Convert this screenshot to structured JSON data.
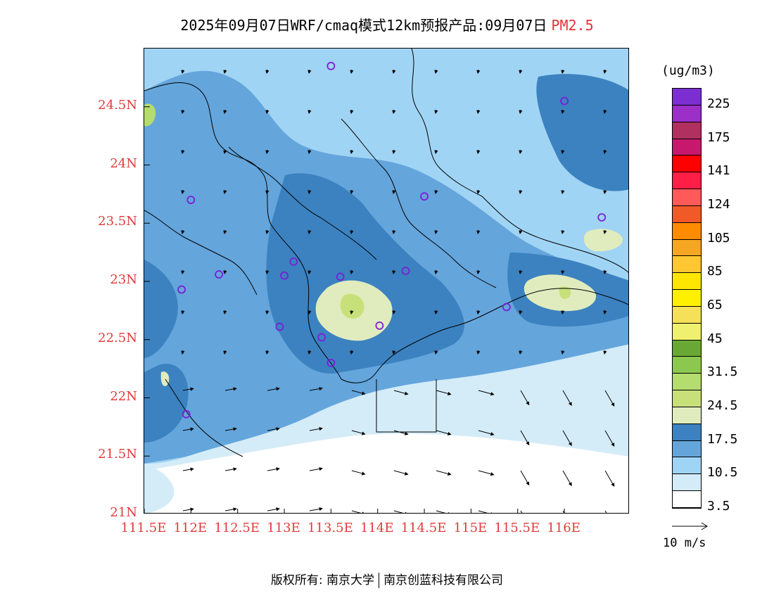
{
  "title": {
    "text": "2025年09月07日WRF/cmaq模式12km预报产品:09月07日",
    "variable": "PM2.5",
    "variable_color": "#e8303a"
  },
  "map": {
    "lat_labels": [
      "24.5N",
      "24N",
      "23.5N",
      "23N",
      "22.5N",
      "22N",
      "21.5N",
      "21N"
    ],
    "lat_values": [
      24.5,
      24,
      23.5,
      23,
      22.5,
      22,
      21.5,
      21
    ],
    "lon_labels": [
      "111.5E",
      "112E",
      "112.5E",
      "113E",
      "113.5E",
      "114E",
      "114.5E",
      "115E",
      "115.5E",
      "116E"
    ],
    "lon_values": [
      111.5,
      112,
      112.5,
      113,
      113.5,
      114,
      114.5,
      115,
      115.5,
      116
    ],
    "lat_range": [
      21,
      25
    ],
    "lon_range": [
      111.5,
      116.7
    ],
    "label_color": "#e03a3a",
    "stations": [
      {
        "lon": 113.5,
        "lat": 24.85
      },
      {
        "lon": 116.0,
        "lat": 24.55
      },
      {
        "lon": 112.0,
        "lat": 23.7
      },
      {
        "lon": 114.5,
        "lat": 23.73
      },
      {
        "lon": 116.4,
        "lat": 23.55
      },
      {
        "lon": 112.3,
        "lat": 23.06
      },
      {
        "lon": 113.0,
        "lat": 23.05
      },
      {
        "lon": 113.1,
        "lat": 23.17
      },
      {
        "lon": 113.6,
        "lat": 23.04
      },
      {
        "lon": 114.3,
        "lat": 23.09
      },
      {
        "lon": 111.9,
        "lat": 22.93
      },
      {
        "lon": 115.38,
        "lat": 22.78
      },
      {
        "lon": 112.95,
        "lat": 22.61
      },
      {
        "lon": 113.4,
        "lat": 22.52
      },
      {
        "lon": 114.02,
        "lat": 22.62
      },
      {
        "lon": 113.5,
        "lat": 22.3
      },
      {
        "lon": 111.95,
        "lat": 21.86
      }
    ]
  },
  "colorbar": {
    "unit": "(ug/m3)",
    "tick_labels": [
      "225",
      "175",
      "141",
      "124",
      "105",
      "85",
      "65",
      "45",
      "31.5",
      "24.5",
      "17.5",
      "10.5",
      "3.5"
    ],
    "colors": [
      "#7b2fd0",
      "#9b2fc8",
      "#b03060",
      "#c8186e",
      "#ff0000",
      "#ff1e46",
      "#ff5a5a",
      "#f05a28",
      "#ff8c00",
      "#f5a623",
      "#ffc832",
      "#ffe600",
      "#fff000",
      "#f5e05a",
      "#f0f070",
      "#6aa835",
      "#8cc850",
      "#b4dc6e",
      "#c8e07a",
      "#e0ecbe",
      "#3c82c0",
      "#64a5dc",
      "#a0d4f4",
      "#d4ecf8",
      "#ffffff"
    ]
  },
  "wind": {
    "reference_label": "10 m/s"
  },
  "footer": {
    "left": "版权所有: 南京大学",
    "right": "南京创蓝科技有限公司"
  }
}
